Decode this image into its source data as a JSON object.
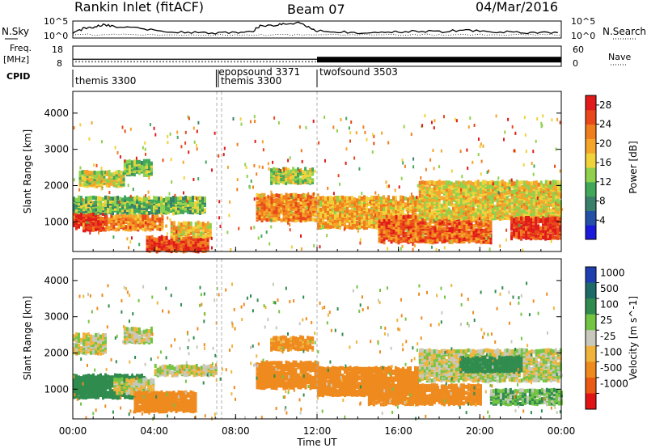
{
  "header": {
    "station": "Rankin Inlet (fitACF)",
    "beam": "Beam 07",
    "date": "04/Mar/2016"
  },
  "side_labels": {
    "nsky": "N.Sky",
    "nsearch": "N.Search",
    "freq_line1": "Freq.",
    "freq_line2": "[MHz]",
    "nave": "Nave",
    "cpid": "CPID"
  },
  "colors": {
    "power_scale": [
      "#1a1adb",
      "#2450a8",
      "#3a7f6a",
      "#41a85a",
      "#8fd14d",
      "#f0d23a",
      "#f5a52a",
      "#f07d1e",
      "#e8481a",
      "#e01a1a"
    ],
    "velocity_scale": [
      "#1f3fb0",
      "#1e6a68",
      "#2f8c4e",
      "#74c444",
      "#c8c8bc",
      "#f0b43c",
      "#ee8a1e",
      "#ea5a14",
      "#e01414"
    ],
    "trace": "#000000",
    "dashed": "#b0b0b0"
  },
  "chart_data": [
    {
      "type": "line",
      "name": "N.Sky / N.Search",
      "x_unit": "hours UT",
      "y_left_ticks": [
        "10^5",
        "10^0"
      ],
      "y_right_ticks": [
        "10^5",
        "10^0"
      ],
      "xlim": [
        0,
        24
      ],
      "nsky_level": [
        [
          0,
          0.25
        ],
        [
          0.5,
          0.55
        ],
        [
          1,
          0.65
        ],
        [
          1.5,
          0.8
        ],
        [
          2,
          0.7
        ],
        [
          3,
          0.6
        ],
        [
          4,
          0.45
        ],
        [
          5,
          0.35
        ],
        [
          6,
          0.3
        ],
        [
          7,
          0.25
        ],
        [
          8,
          0.3
        ],
        [
          8.8,
          0.35
        ],
        [
          9.2,
          0.75
        ],
        [
          10,
          0.8
        ],
        [
          10.5,
          0.85
        ],
        [
          11,
          0.95
        ],
        [
          11.5,
          0.7
        ],
        [
          12,
          0.4
        ],
        [
          13,
          0.35
        ],
        [
          14,
          0.3
        ],
        [
          15,
          0.3
        ],
        [
          16,
          0.35
        ],
        [
          17,
          0.4
        ],
        [
          18,
          0.35
        ],
        [
          19,
          0.45
        ],
        [
          20,
          0.4
        ],
        [
          21,
          0.35
        ],
        [
          22,
          0.3
        ],
        [
          23,
          0.3
        ],
        [
          24,
          0.3
        ]
      ]
    },
    {
      "type": "line",
      "name": "Freq / Nave",
      "y_left_ticks": [
        "18",
        "8"
      ],
      "y_right_ticks": [
        "60",
        "0"
      ],
      "xlim": [
        0,
        24
      ],
      "freq_mhz_constant": 11.5,
      "nave_dense_start_h": 12.0
    },
    {
      "type": "table",
      "name": "CPID",
      "segments": [
        {
          "label": "themis 3300",
          "start_h": 0.0
        },
        {
          "label": "epopsound 3371",
          "start_h": 7.05
        },
        {
          "label": "themis 3300",
          "start_h": 7.15
        },
        {
          "label": "twofsound 3503",
          "start_h": 12.0
        }
      ]
    },
    {
      "type": "heatmap",
      "name": "Power",
      "ylabel": "Slant Range [km]",
      "yticks": [
        1000,
        2000,
        3000,
        4000
      ],
      "ylim": [
        180,
        4600
      ],
      "xlim": [
        0,
        24
      ],
      "colorbar_label": "Power [dB]",
      "colorbar_ticks": [
        4,
        8,
        12,
        16,
        20,
        24,
        28
      ],
      "colorbar_range": [
        0,
        30
      ],
      "bands": [
        {
          "h0": 0,
          "h1": 1.6,
          "r0": 780,
          "r1": 1420,
          "dB": 27
        },
        {
          "h0": 1.6,
          "h1": 4.4,
          "r0": 800,
          "r1": 1200,
          "dB": 22
        },
        {
          "h0": 0,
          "h1": 6.5,
          "r0": 1250,
          "r1": 1700,
          "dB": 12
        },
        {
          "h0": 0.3,
          "h1": 2.5,
          "r0": 2000,
          "r1": 2400,
          "dB": 16
        },
        {
          "h0": 2.5,
          "h1": 3.9,
          "r0": 2300,
          "r1": 2700,
          "dB": 13
        },
        {
          "h0": 3.6,
          "h1": 6.6,
          "r0": 200,
          "r1": 600,
          "dB": 26
        },
        {
          "h0": 4.8,
          "h1": 6.8,
          "r0": 600,
          "r1": 1000,
          "dB": 18
        },
        {
          "h0": 9.0,
          "h1": 12.0,
          "r0": 1050,
          "r1": 1750,
          "dB": 22
        },
        {
          "h0": 9.7,
          "h1": 11.8,
          "r0": 2080,
          "r1": 2460,
          "dB": 14
        },
        {
          "h0": 12.0,
          "h1": 17.0,
          "r0": 850,
          "r1": 1700,
          "dB": 19
        },
        {
          "h0": 15.0,
          "h1": 20.5,
          "r0": 450,
          "r1": 1150,
          "dB": 24
        },
        {
          "h0": 17.0,
          "h1": 24.0,
          "r0": 1100,
          "r1": 2100,
          "dB": 17
        },
        {
          "h0": 21.5,
          "h1": 24.0,
          "r0": 550,
          "r1": 1100,
          "dB": 27
        }
      ]
    },
    {
      "type": "heatmap",
      "name": "Velocity",
      "ylabel": "Slant Range [km]",
      "xlabel": "Time UT",
      "xticks": [
        "00:00",
        "04:00",
        "08:00",
        "12:00",
        "16:00",
        "20:00",
        "00:00"
      ],
      "yticks": [
        1000,
        2000,
        3000,
        4000
      ],
      "ylim": [
        180,
        4600
      ],
      "xlim": [
        0,
        24
      ],
      "colorbar_label": "Velocity [m s^-1]",
      "colorbar_ticks": [
        "1000",
        "500",
        "100",
        "25",
        "-25",
        "-100",
        "-500",
        "-1000"
      ],
      "bands": [
        {
          "h0": 0,
          "h1": 1.6,
          "r0": 2000,
          "r1": 2500,
          "vel": 0
        },
        {
          "h0": 2.5,
          "h1": 3.9,
          "r0": 2300,
          "r1": 2700,
          "vel": 0
        },
        {
          "h0": 0,
          "h1": 3.5,
          "r0": 780,
          "r1": 1400,
          "vel": 300
        },
        {
          "h0": 2.0,
          "h1": 4.0,
          "r0": 900,
          "r1": 1300,
          "vel": 0
        },
        {
          "h0": 3.0,
          "h1": 6.0,
          "r0": 400,
          "r1": 900,
          "vel": -300
        },
        {
          "h0": 4.0,
          "h1": 7.0,
          "r0": 1400,
          "r1": 1650,
          "vel": 0
        },
        {
          "h0": 9.0,
          "h1": 12.0,
          "r0": 1050,
          "r1": 1750,
          "vel": -300
        },
        {
          "h0": 9.7,
          "h1": 11.8,
          "r0": 2100,
          "r1": 2450,
          "vel": -150
        },
        {
          "h0": 12.0,
          "h1": 17.0,
          "r0": 850,
          "r1": 1600,
          "vel": -250
        },
        {
          "h0": 14.5,
          "h1": 20.0,
          "r0": 600,
          "r1": 1100,
          "vel": -300
        },
        {
          "h0": 17.0,
          "h1": 24.0,
          "r0": 1250,
          "r1": 2100,
          "vel": 0
        },
        {
          "h0": 19.0,
          "h1": 22.0,
          "r0": 1500,
          "r1": 1900,
          "vel": 200
        },
        {
          "h0": 20.5,
          "h1": 24.0,
          "r0": 600,
          "r1": 1000,
          "vel": 80
        }
      ]
    }
  ]
}
